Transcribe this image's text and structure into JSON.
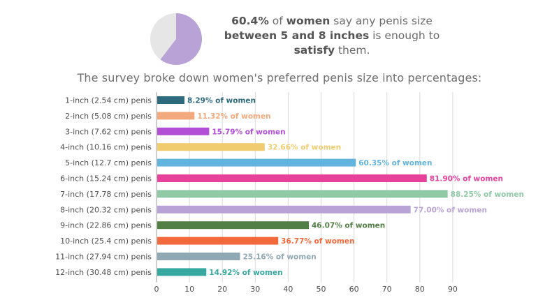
{
  "headline": {
    "pct": "60.4%",
    "t1": " of ",
    "women": "women",
    "t2": " say any penis size ",
    "range": "between 5 and 8 inches",
    "t3": " is enough to ",
    "satisfy": "satisfy",
    "t4": " them."
  },
  "subtitle": "The survey broke down women's preferred penis size into percentages:",
  "pie": {
    "value": 60.4,
    "fill_color": "#b9a3d6",
    "rest_color": "#e6e6e6"
  },
  "chart_data": {
    "type": "bar",
    "orientation": "horizontal",
    "categories": [
      "1-inch (2.54 cm) penis",
      "2-inch (5.08 cm) penis",
      "3-inch (7.62 cm) penis",
      "4-inch (10.16 cm) penis",
      "5-inch (12.7 cm) penis",
      "6-inch (15.24 cm) penis",
      "7-inch (17.78 cm) penis",
      "8-inch (20.32 cm) penis",
      "9-inch (22.86 cm) penis",
      "10-inch (25.4 cm) penis",
      "11-inch (27.94 cm) penis",
      "12-inch (30.48 cm) penis"
    ],
    "values": [
      8.29,
      11.32,
      15.79,
      32.66,
      60.35,
      81.9,
      88.25,
      77.0,
      46.07,
      36.77,
      25.16,
      14.92
    ],
    "value_labels": [
      "8.29% of women",
      "11.32% of women",
      "15.79% of women",
      "32.66% of women",
      "60.35% of women",
      "81.90% of women",
      "88.25% of women",
      "77.00% of women",
      "46.07% of women",
      "36.77% of women",
      "25.16% of women",
      "14.92% of women"
    ],
    "colors": [
      "#2d6a7e",
      "#f4a97c",
      "#b34fd6",
      "#f1cc6e",
      "#62b4de",
      "#e8419c",
      "#8fc9a6",
      "#b9a3d6",
      "#517f45",
      "#f26a3c",
      "#8fa8b4",
      "#35a8a0"
    ],
    "xlim": [
      0,
      90
    ],
    "xticks": [
      0,
      10,
      20,
      30,
      40,
      50,
      60,
      70,
      80,
      90
    ],
    "grid": true
  }
}
